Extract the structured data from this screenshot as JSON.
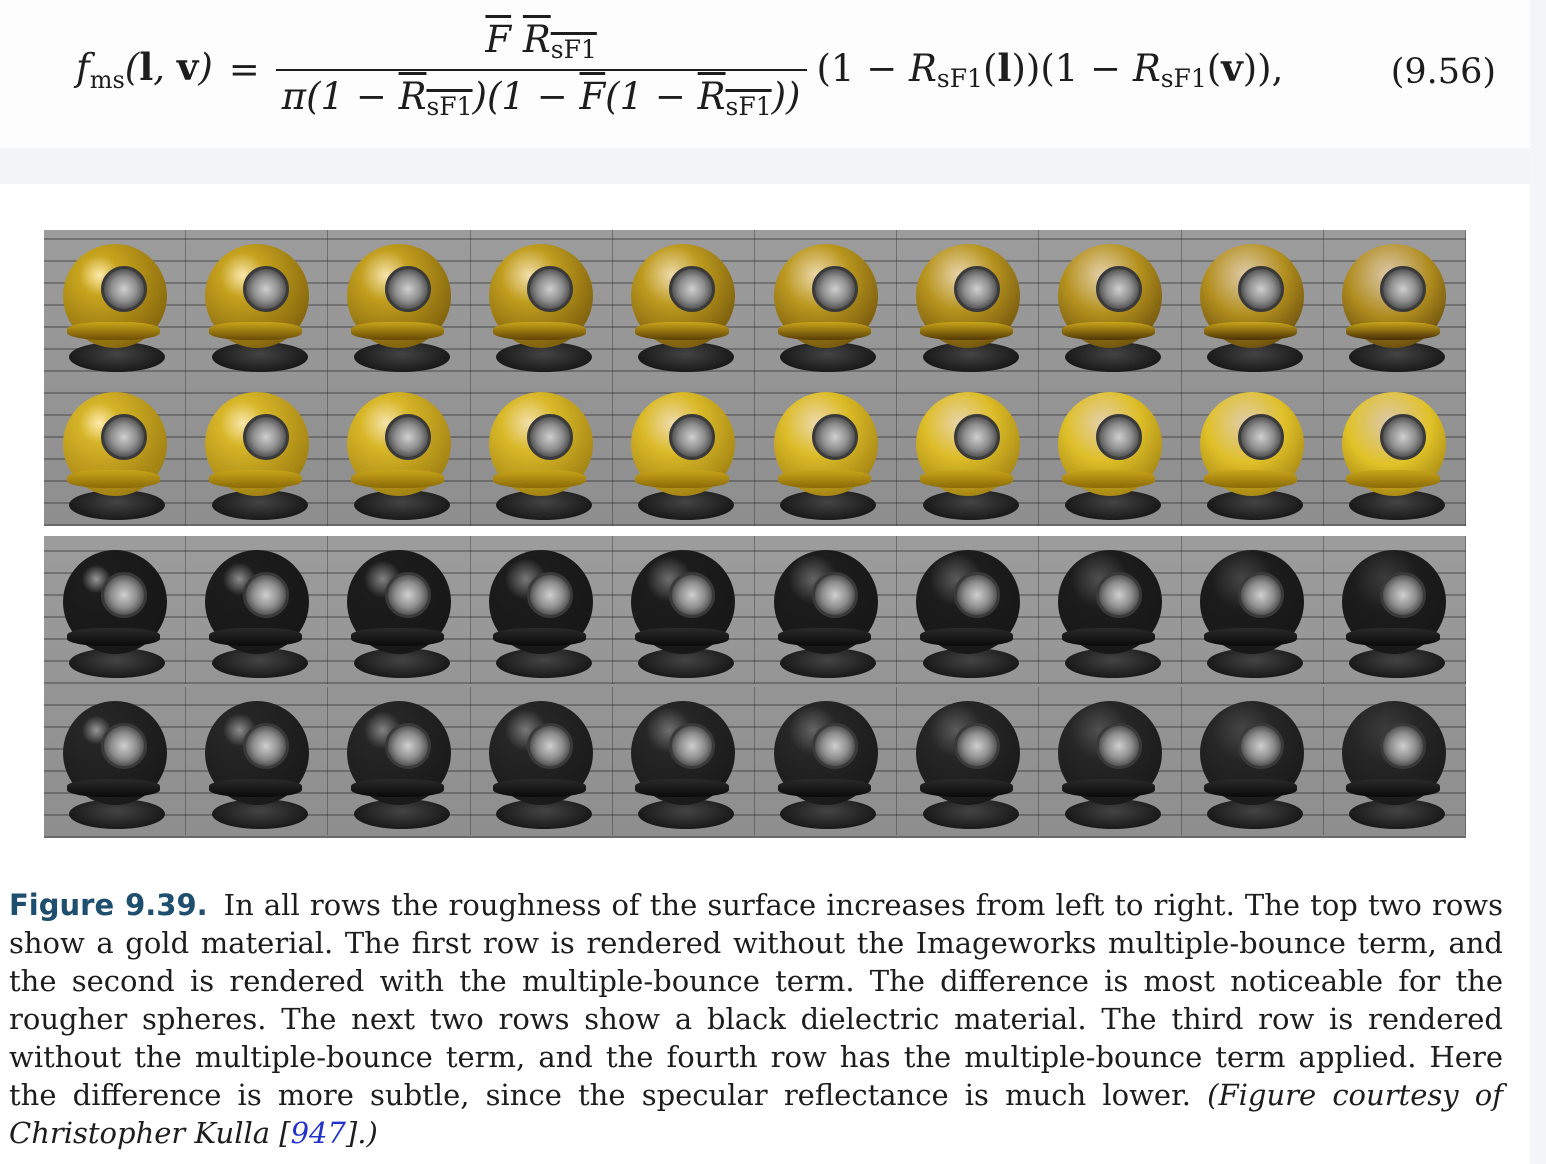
{
  "equation": {
    "lhs_func": "f",
    "lhs_sub": "ms",
    "lhs_args": [
      "l",
      "v"
    ],
    "equals": "=",
    "num_F": "F",
    "num_R": "R",
    "sub_sF1": "sF1",
    "den_pi": "π(1 − ",
    "den_close1": ")(1 − ",
    "den_F": "F",
    "den_mid": "(1 − ",
    "den_close2": "))",
    "factor_open": "(1 − ",
    "factor_arg_l": "l",
    "factor_mid": "))(1 − ",
    "factor_arg_v": "v",
    "factor_close": ")),",
    "number": "(9.56)"
  },
  "figure": {
    "columns": 10,
    "gold_rows": [
      "without-multiple-bounce",
      "with-multiple-bounce"
    ],
    "black_rows": [
      "without-multiple-bounce",
      "with-multiple-bounce"
    ],
    "gold_color": "#c9a51a",
    "black_color": "#151515"
  },
  "caption": {
    "label": "Figure 9.39.",
    "body": "In all rows the roughness of the surface increases from left to right. The top two rows show a gold material. The first row is rendered without the Imageworks multiple-bounce term, and the second is rendered with the multiple-bounce term. The difference is most noticeable for the rougher spheres. The next two rows show a black dielectric material. The third row is rendered without the multiple-bounce term, and the fourth row has the multiple-bounce term applied. Here the difference is more subtle, since the specular reflectance is much lower.",
    "credit_prefix": "(Figure courtesy of Christopher Kulla [",
    "credit_ref": "947",
    "credit_suffix": "].)"
  }
}
